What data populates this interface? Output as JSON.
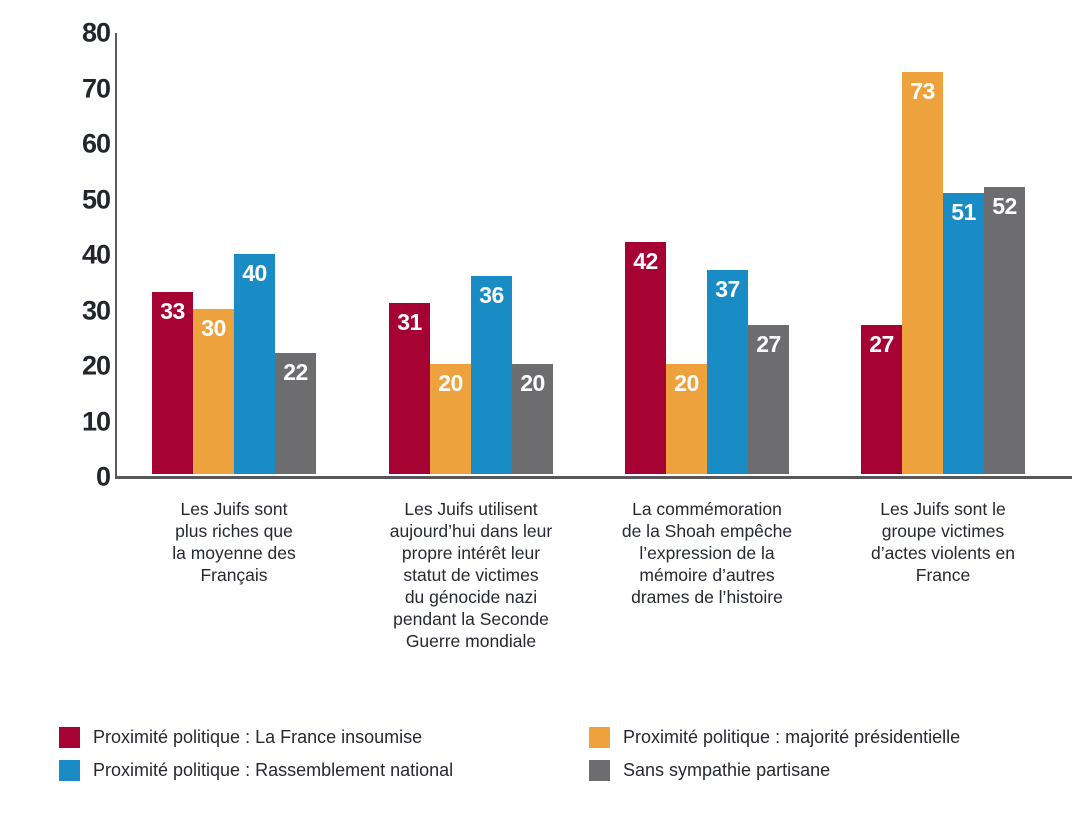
{
  "chart_data": {
    "type": "bar",
    "title": "",
    "xlabel": "",
    "ylabel": "",
    "ylim": [
      0,
      80
    ],
    "yticks": [
      0,
      10,
      20,
      30,
      40,
      50,
      60,
      70,
      80
    ],
    "grid": false,
    "legend_position": "bottom",
    "value_labels": "white, bold, inside top of each bar",
    "categories": [
      "Les Juifs sont\nplus riches que\nla moyenne des\nFrançais",
      "Les Juifs utilisent\naujourd’hui dans leur\npropre intérêt leur\nstatut de victimes\ndu génocide nazi\npendant la Seconde\nGuerre mondiale",
      "La commémoration\nde la Shoah empêche\nl’expression de la\nmémoire d’autres\ndrames de l’histoire",
      "Les Juifs sont le\ngroupe victimes\nd’actes violents en\nFrance"
    ],
    "series": [
      {
        "name": "Proximité politique : La France insoumise",
        "color": "#A60234",
        "values": [
          33,
          31,
          42,
          27
        ]
      },
      {
        "name": "Proximité politique : majorité présidentielle",
        "color": "#EEA23E",
        "values": [
          30,
          20,
          20,
          73
        ]
      },
      {
        "name": "Proximité politique : Rassemblement national",
        "color": "#198CC5",
        "values": [
          40,
          36,
          37,
          51
        ]
      },
      {
        "name": "Sans sympathie partisane",
        "color": "#6D6D6F",
        "values": [
          22,
          20,
          27,
          52
        ]
      }
    ]
  },
  "axis": {
    "color": "#58585a",
    "tick_color": "#23252e"
  },
  "legend": {
    "col1": [
      {
        "label": "Proximité politique : La France insoumise",
        "color": "#A60234"
      },
      {
        "label": "Proximité politique : Rassemblement national",
        "color": "#198CC5"
      }
    ],
    "col2": [
      {
        "label": "Proximité politique : majorité présidentielle",
        "color": "#EEA23E"
      },
      {
        "label": "Sans sympathie partisane",
        "color": "#6D6D6F"
      }
    ]
  }
}
